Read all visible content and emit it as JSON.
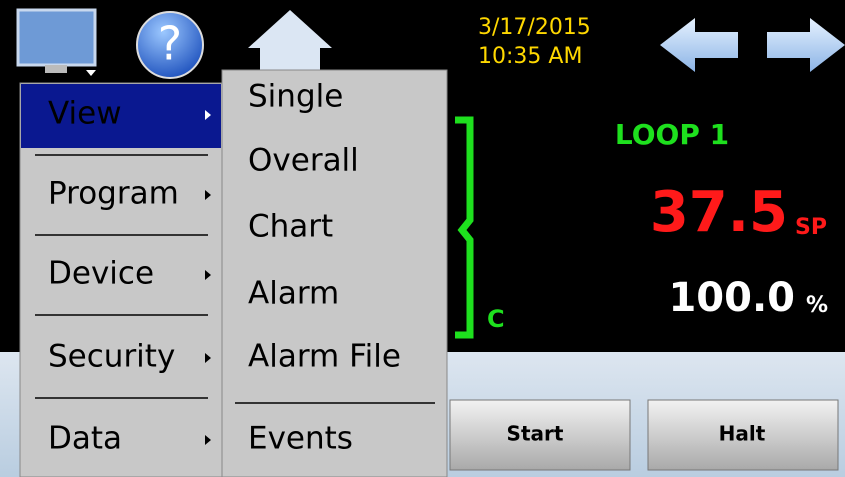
{
  "toolbar": {
    "help": "?",
    "date": "3/17/2015",
    "time": "10:35 AM"
  },
  "menu": {
    "items": [
      "View",
      "Program",
      "Device",
      "Security",
      "Data"
    ]
  },
  "submenu": {
    "items": [
      "Single",
      "Overall",
      "Chart",
      "Alarm",
      "Alarm File",
      "Events"
    ]
  },
  "loop": {
    "title": "LOOP 1",
    "unit": "C",
    "setpoint": "37.5",
    "setpoint_label": "SP",
    "output": "100.0",
    "output_unit": "%"
  },
  "buttons": [
    "Start",
    "Halt"
  ]
}
